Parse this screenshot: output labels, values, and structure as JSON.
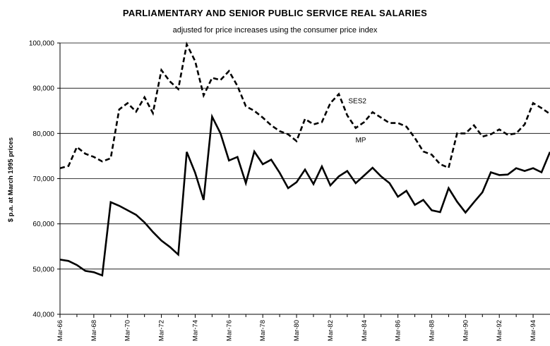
{
  "chart_data": {
    "type": "line",
    "title": "PARLIAMENTARY AND SENIOR PUBLIC SERVICE REAL SALARIES",
    "subtitle": "adjusted for price increases using the consumer price index",
    "ylabel": "$ p.a. at March 1995 prices",
    "xlabel": "",
    "ylim": [
      40000,
      100000
    ],
    "yticks": [
      40000,
      50000,
      60000,
      70000,
      80000,
      90000,
      100000
    ],
    "ytick_labels": [
      "40,000",
      "50,000",
      "60,000",
      "70,000",
      "80,000",
      "90,000",
      "100,000"
    ],
    "xlim": [
      1966,
      1995
    ],
    "xticks": [
      1966,
      1968,
      1970,
      1972,
      1974,
      1976,
      1978,
      1980,
      1982,
      1984,
      1986,
      1988,
      1990,
      1992,
      1994
    ],
    "xtick_labels": [
      "Mar-66",
      "Mar-68",
      "Mar-70",
      "Mar-72",
      "Mar-74",
      "Mar-76",
      "Mar-78",
      "Mar-80",
      "Mar-82",
      "Mar-84",
      "Mar-86",
      "Mar-88",
      "Mar-90",
      "Mar-92",
      "Mar-94"
    ],
    "grid": true,
    "series": [
      {
        "name": "SES2",
        "style": "dashed",
        "color": "#000000",
        "x": [
          1966,
          1966.5,
          1967,
          1967.5,
          1968,
          1968.5,
          1969,
          1969.5,
          1970,
          1970.5,
          1971,
          1971.5,
          1972,
          1972.5,
          1973,
          1973.5,
          1974,
          1974.5,
          1975,
          1975.5,
          1976,
          1976.5,
          1977,
          1977.5,
          1978,
          1978.5,
          1979,
          1979.5,
          1980,
          1980.5,
          1981,
          1981.5,
          1982,
          1982.5,
          1983,
          1983.5,
          1984,
          1984.5,
          1985,
          1985.5,
          1986,
          1986.5,
          1987,
          1987.5,
          1988,
          1988.5,
          1989,
          1989.5,
          1990,
          1990.5,
          1991,
          1991.5,
          1992,
          1992.5,
          1993,
          1993.5,
          1994,
          1994.5,
          1995
        ],
        "values": [
          72300,
          72800,
          77000,
          75500,
          74800,
          73800,
          74500,
          85300,
          86700,
          84800,
          88000,
          84500,
          94000,
          91500,
          89800,
          99700,
          96000,
          88400,
          92300,
          91800,
          93800,
          90500,
          86000,
          85000,
          83500,
          81800,
          80500,
          79800,
          78300,
          83200,
          82000,
          82500,
          86700,
          88700,
          84000,
          81200,
          82500,
          84700,
          83500,
          82300,
          82300,
          81500,
          79000,
          76000,
          75300,
          73200,
          72400,
          80000,
          80000,
          81800,
          79300,
          79800,
          80900,
          79700,
          80000,
          82000,
          86700,
          85600,
          84300
        ]
      },
      {
        "name": "MP",
        "style": "solid",
        "color": "#000000",
        "x": [
          1966,
          1966.5,
          1967,
          1967.5,
          1968,
          1968.5,
          1969,
          1969.5,
          1970,
          1970.5,
          1971,
          1971.5,
          1972,
          1972.5,
          1973,
          1973.5,
          1974,
          1974.5,
          1975,
          1975.5,
          1976,
          1976.5,
          1977,
          1977.5,
          1978,
          1978.5,
          1979,
          1979.5,
          1980,
          1980.5,
          1981,
          1981.5,
          1982,
          1982.5,
          1983,
          1983.5,
          1984,
          1984.5,
          1985,
          1985.5,
          1986,
          1986.5,
          1987,
          1987.5,
          1988,
          1988.5,
          1989,
          1989.5,
          1990,
          1990.5,
          1991,
          1991.5,
          1992,
          1992.5,
          1993,
          1993.5,
          1994,
          1994.5,
          1995
        ],
        "values": [
          52100,
          51800,
          50900,
          49600,
          49300,
          48600,
          64800,
          64000,
          63000,
          62000,
          60300,
          58200,
          56300,
          54900,
          53200,
          75900,
          71300,
          65300,
          83700,
          80000,
          74000,
          74800,
          69000,
          76000,
          73200,
          74200,
          71300,
          67900,
          69200,
          72000,
          68800,
          72700,
          68500,
          70500,
          71700,
          69000,
          70700,
          72400,
          70500,
          69000,
          66000,
          67300,
          64200,
          65300,
          63000,
          62600,
          67900,
          64900,
          62500,
          64800,
          67000,
          71400,
          70800,
          70900,
          72300,
          71700,
          72300,
          71400,
          75900
        ]
      }
    ],
    "annotations": [
      {
        "text": "SES2",
        "x": 1983.6,
        "y": 86700
      },
      {
        "text": "MP",
        "x": 1983.8,
        "y": 78000
      }
    ]
  }
}
